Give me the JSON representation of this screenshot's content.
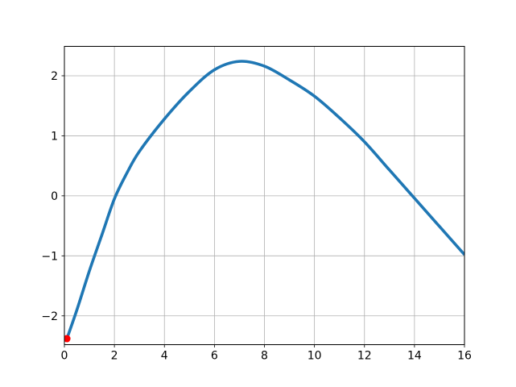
{
  "figure": {
    "background_color": "#ffffff",
    "title": ""
  },
  "chart_data": {
    "type": "line",
    "title": "",
    "xlabel": "",
    "ylabel": "",
    "xlim": [
      0,
      16
    ],
    "ylim": [
      -2.48,
      2.49
    ],
    "x_ticks": [
      0,
      2,
      4,
      6,
      8,
      10,
      12,
      14,
      16
    ],
    "y_ticks": [
      -2,
      -1,
      0,
      1,
      2
    ],
    "x_tick_labels": [
      "0",
      "2",
      "4",
      "6",
      "8",
      "10",
      "12",
      "14",
      "16"
    ],
    "y_tick_labels": [
      "−2",
      "−1",
      "0",
      "1",
      "2"
    ],
    "grid": true,
    "grid_color": "#b0b0b0",
    "spine_color": "#000000",
    "legend": null,
    "series": [
      {
        "name": "trajectory-curve",
        "color": "#1f77b4",
        "line_width": 3.6,
        "x": [
          0.1,
          0.5,
          1,
          1.5,
          2,
          2.5,
          3,
          4,
          5,
          6,
          7,
          8,
          9,
          10,
          11,
          12,
          13,
          14,
          15,
          16
        ],
        "y": [
          -2.38,
          -1.9,
          -1.25,
          -0.65,
          -0.05,
          0.38,
          0.74,
          1.28,
          1.74,
          2.1,
          2.24,
          2.16,
          1.93,
          1.66,
          1.3,
          0.9,
          0.43,
          -0.04,
          -0.51,
          -0.98
        ]
      }
    ],
    "markers": [
      {
        "name": "start-point-marker",
        "x": 0.1,
        "y": -2.38,
        "color": "#ff0000",
        "radius": 4.5
      }
    ]
  }
}
